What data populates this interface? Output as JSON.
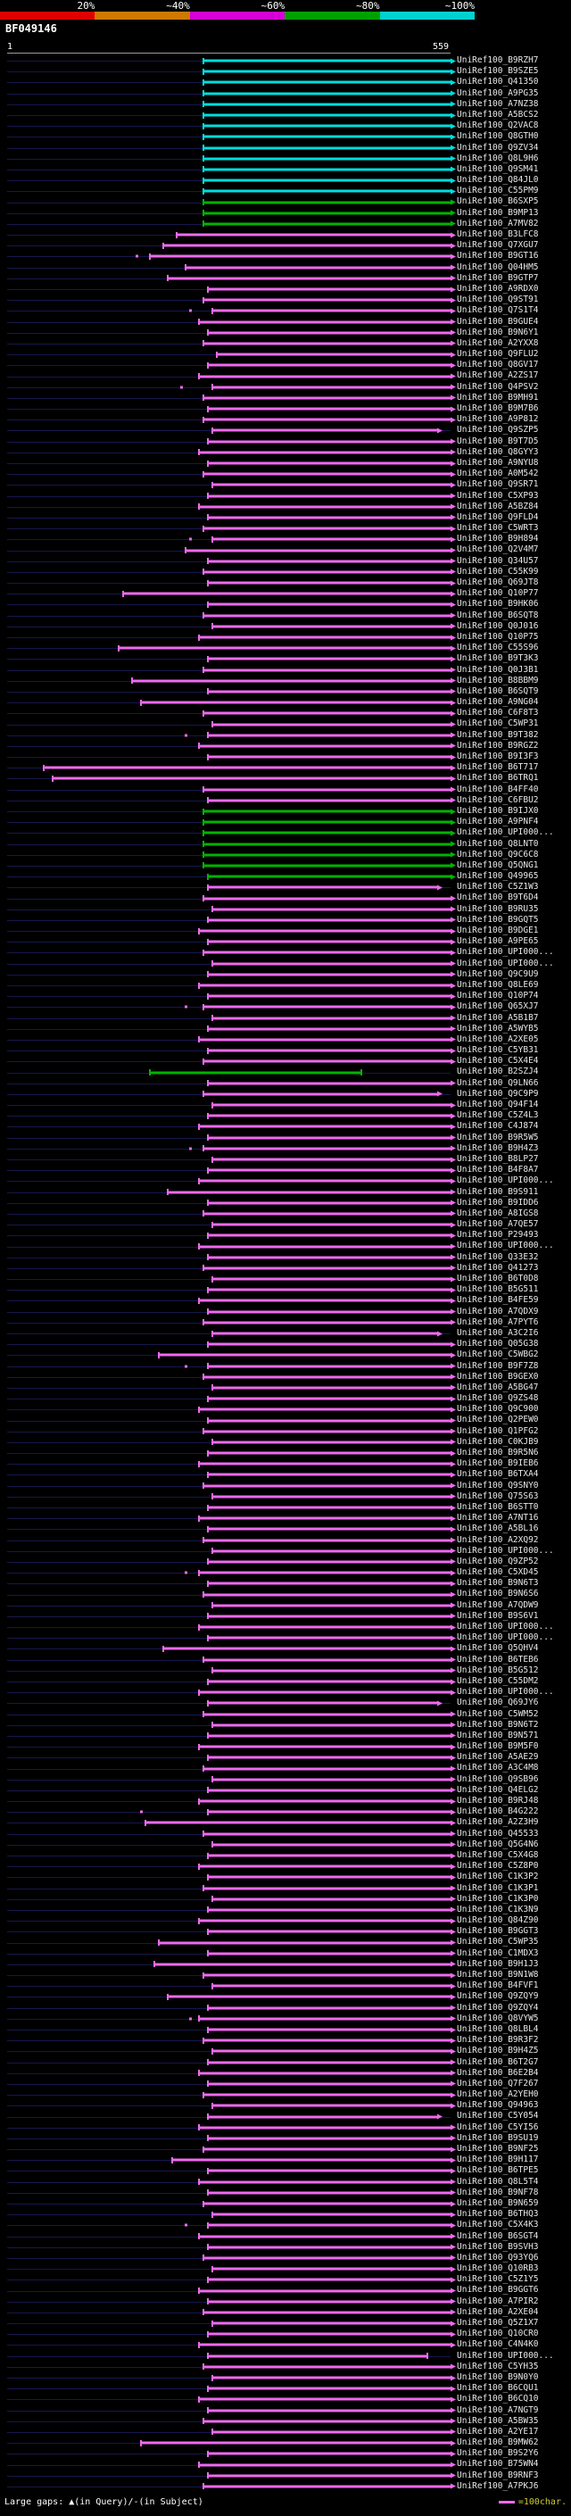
{
  "scale": {
    "labels": [
      "20%",
      "~40%",
      "~60%",
      "~80%",
      "~100%"
    ],
    "segment_colors": [
      "#dd0000",
      "#cc7a00",
      "#d400d4",
      "#00a000",
      "#00d0d0"
    ]
  },
  "query": {
    "name": "BF049146",
    "start_label": "1",
    "end_label": "559"
  },
  "footer": {
    "left": "Large gaps: ▲(in Query)/-(in Subject)",
    "right": "=100char.",
    "legend_dash_color": "#ee6aee"
  },
  "chart_data": {
    "type": "table",
    "title": "BF049146",
    "x_axis": {
      "start": 1,
      "end": 559
    },
    "label_prefix": "UniRef100_",
    "colors": {
      "c": "#00dede",
      "g": "#00b400",
      "m": "#ee6aee"
    },
    "underlay_color": "#17174d",
    "identity_buckets": {
      "c": "80-100%",
      "g": "60-80%",
      "m": "40-60%"
    },
    "hit_format": [
      "accession",
      "identity_bucket",
      "align_start_frac",
      "align_end_frac",
      "arrowhead",
      "extra_dot_frac"
    ],
    "hits": [
      [
        "B9RZH7",
        "c",
        0.44,
        1,
        1
      ],
      [
        "B9SZE5",
        "c",
        0.44,
        1,
        1
      ],
      [
        "Q41350",
        "c",
        0.44,
        1,
        1
      ],
      [
        "A9PG35",
        "c",
        0.44,
        1,
        1
      ],
      [
        "A7NZ38",
        "c",
        0.44,
        1,
        1
      ],
      [
        "A5BCS2",
        "c",
        0.44,
        1,
        1
      ],
      [
        "Q2VAC8",
        "c",
        0.44,
        1,
        1
      ],
      [
        "Q8GTH0",
        "c",
        0.44,
        1,
        1
      ],
      [
        "Q9ZV34",
        "c",
        0.44,
        1,
        1
      ],
      [
        "Q8L9H6",
        "c",
        0.44,
        1,
        1
      ],
      [
        "Q9SM41",
        "c",
        0.44,
        1,
        1
      ],
      [
        "Q84JL0",
        "c",
        0.44,
        1,
        1
      ],
      [
        "C55PM9",
        "c",
        0.44,
        1,
        1
      ],
      [
        "B6SXP5",
        "g",
        0.44,
        1,
        1
      ],
      [
        "B9MP13",
        "g",
        0.44,
        1,
        1
      ],
      [
        "A7MV82",
        "g",
        0.44,
        1,
        1
      ],
      [
        "B3LFC8",
        "m",
        0.38,
        1,
        1
      ],
      [
        "Q7XGU7",
        "m",
        0.35,
        1,
        1
      ],
      [
        "B9GT16",
        "m",
        0.32,
        1,
        1,
        0.29
      ],
      [
        "Q04HM5",
        "m",
        0.4,
        1,
        1
      ],
      [
        "B9GTP7",
        "m",
        0.36,
        1,
        1
      ],
      [
        "A9RDX0",
        "m",
        0.45,
        1,
        1
      ],
      [
        "Q9ST91",
        "m",
        0.44,
        1,
        1
      ],
      [
        "Q7S1T4",
        "m",
        0.46,
        1,
        1,
        0.41
      ],
      [
        "B9GUE4",
        "m",
        0.43,
        1,
        1
      ],
      [
        "B9N6Y1",
        "m",
        0.45,
        1,
        1
      ],
      [
        "A2YXX8",
        "m",
        0.44,
        1,
        1
      ],
      [
        "Q9FLU2",
        "m",
        0.47,
        1,
        1
      ],
      [
        "Q8GV17",
        "m",
        0.45,
        1,
        1
      ],
      [
        "A2ZS17",
        "m",
        0.43,
        1,
        1
      ],
      [
        "Q4PSV2",
        "m",
        0.46,
        1,
        1,
        0.39
      ],
      [
        "B9MH91",
        "m",
        0.44,
        1,
        1
      ],
      [
        "B9M7B6",
        "m",
        0.45,
        1,
        1
      ],
      [
        "A9P812",
        "m",
        0.44,
        1,
        1
      ],
      [
        "Q9SZP5",
        "m",
        0.46,
        0.97,
        1
      ],
      [
        "B9T7D5",
        "m",
        0.45,
        1,
        1
      ],
      [
        "Q8GYY3",
        "m",
        0.43,
        1,
        1
      ],
      [
        "A9NYU8",
        "m",
        0.45,
        1,
        1
      ],
      [
        "A0M542",
        "m",
        0.44,
        1,
        1
      ],
      [
        "Q9SR71",
        "m",
        0.46,
        1,
        1
      ],
      [
        "C5XP93",
        "m",
        0.45,
        1,
        1
      ],
      [
        "A5BZ84",
        "m",
        0.43,
        1,
        1
      ],
      [
        "Q9FLD4",
        "m",
        0.45,
        1,
        1
      ],
      [
        "C5WRT3",
        "m",
        0.44,
        1,
        1
      ],
      [
        "B9H894",
        "m",
        0.46,
        1,
        1,
        0.41
      ],
      [
        "Q2V4M7",
        "m",
        0.4,
        1,
        1
      ],
      [
        "Q34U57",
        "m",
        0.45,
        1,
        1
      ],
      [
        "C55K99",
        "m",
        0.44,
        1,
        1
      ],
      [
        "Q69JT8",
        "m",
        0.45,
        1,
        1
      ],
      [
        "Q10P77",
        "m",
        0.26,
        1,
        1
      ],
      [
        "B9HK06",
        "m",
        0.45,
        1,
        1
      ],
      [
        "B6SQT8",
        "m",
        0.44,
        1,
        1
      ],
      [
        "Q0J016",
        "m",
        0.46,
        1,
        1
      ],
      [
        "Q10P75",
        "m",
        0.43,
        1,
        1
      ],
      [
        "C55S96",
        "m",
        0.25,
        1,
        1
      ],
      [
        "B9T3K3",
        "m",
        0.45,
        1,
        1
      ],
      [
        "Q0J3B1",
        "m",
        0.44,
        1,
        1
      ],
      [
        "B8BBM9",
        "m",
        0.28,
        1,
        1
      ],
      [
        "B6SQT9",
        "m",
        0.45,
        1,
        1
      ],
      [
        "A9NG04",
        "m",
        0.3,
        1,
        1
      ],
      [
        "C6F8T3",
        "m",
        0.44,
        1,
        1
      ],
      [
        "C5WP31",
        "m",
        0.46,
        1,
        1
      ],
      [
        "B9T382",
        "m",
        0.45,
        1,
        1,
        0.4
      ],
      [
        "B9RGZ2",
        "m",
        0.43,
        1,
        1
      ],
      [
        "B9I3F3",
        "m",
        0.45,
        1,
        1
      ],
      [
        "B6T717",
        "m",
        0.08,
        1,
        1
      ],
      [
        "B6TRQ1",
        "m",
        0.1,
        1,
        1
      ],
      [
        "B4FF40",
        "m",
        0.44,
        1,
        1
      ],
      [
        "C6FBU2",
        "m",
        0.45,
        1,
        1
      ],
      [
        "B9IJX0",
        "g",
        0.44,
        1,
        1
      ],
      [
        "A9PNF4",
        "g",
        0.44,
        1,
        1
      ],
      [
        "UPI000...",
        "g",
        0.44,
        1,
        1
      ],
      [
        "Q8LNT0",
        "g",
        0.44,
        1,
        1
      ],
      [
        "Q9C6C8",
        "g",
        0.44,
        1,
        1
      ],
      [
        "Q5QNG1",
        "g",
        0.44,
        1,
        1
      ],
      [
        "Q49965",
        "g",
        0.45,
        1,
        1
      ],
      [
        "C5Z1W3",
        "m",
        0.45,
        0.97,
        1
      ],
      [
        "B9T6D4",
        "m",
        0.44,
        1,
        1
      ],
      [
        "B9RU35",
        "m",
        0.46,
        1,
        1
      ],
      [
        "B9GQT5",
        "m",
        0.45,
        1,
        1
      ],
      [
        "B9DGE1",
        "m",
        0.43,
        1,
        1
      ],
      [
        "A9PE65",
        "m",
        0.45,
        1,
        1
      ],
      [
        "UPI000...",
        "m",
        0.44,
        1,
        1
      ],
      [
        "UPI000...",
        "m",
        0.46,
        1,
        1
      ],
      [
        "Q9C9U9",
        "m",
        0.45,
        1,
        1
      ],
      [
        "Q8LE69",
        "m",
        0.43,
        1,
        1
      ],
      [
        "Q10P74",
        "m",
        0.45,
        1,
        1
      ],
      [
        "Q65XJ7",
        "m",
        0.44,
        1,
        1,
        0.4
      ],
      [
        "A5B1B7",
        "m",
        0.46,
        1,
        1
      ],
      [
        "A5WYB5",
        "m",
        0.45,
        1,
        1
      ],
      [
        "A2XE05",
        "m",
        0.43,
        1,
        1
      ],
      [
        "C5YB31",
        "m",
        0.45,
        1,
        1
      ],
      [
        "C5X4E4",
        "m",
        0.44,
        1,
        1
      ],
      [
        "B2SZJ4",
        "g",
        0.32,
        0.8,
        0
      ],
      [
        "Q9LN66",
        "m",
        0.45,
        1,
        1
      ],
      [
        "Q9C9P9",
        "m",
        0.44,
        0.97,
        1
      ],
      [
        "Q94F14",
        "m",
        0.46,
        1,
        1
      ],
      [
        "C5Z4L3",
        "m",
        0.45,
        1,
        1
      ],
      [
        "C4J874",
        "m",
        0.43,
        1,
        1
      ],
      [
        "B9R5W5",
        "m",
        0.45,
        1,
        1
      ],
      [
        "B9H4Z3",
        "m",
        0.44,
        1,
        1,
        0.41
      ],
      [
        "B8LP27",
        "m",
        0.46,
        1,
        1
      ],
      [
        "B4F8A7",
        "m",
        0.45,
        1,
        1
      ],
      [
        "UPI000...",
        "m",
        0.43,
        1,
        1
      ],
      [
        "B9S911",
        "m",
        0.36,
        1,
        1
      ],
      [
        "B9IDD6",
        "m",
        0.45,
        1,
        1
      ],
      [
        "A8IGS8",
        "m",
        0.44,
        1,
        1
      ],
      [
        "A7QE57",
        "m",
        0.46,
        1,
        1
      ],
      [
        "P29493",
        "m",
        0.45,
        1,
        1
      ],
      [
        "UPI000...",
        "m",
        0.43,
        1,
        1
      ],
      [
        "Q33E32",
        "m",
        0.45,
        1,
        1
      ],
      [
        "Q41273",
        "m",
        0.44,
        1,
        1
      ],
      [
        "B6T0D8",
        "m",
        0.46,
        1,
        1
      ],
      [
        "B5G511",
        "m",
        0.45,
        1,
        1
      ],
      [
        "B4FE59",
        "m",
        0.43,
        1,
        1
      ],
      [
        "A7QDX9",
        "m",
        0.45,
        1,
        1
      ],
      [
        "A7PYT6",
        "m",
        0.44,
        1,
        1
      ],
      [
        "A3C2I6",
        "m",
        0.46,
        0.97,
        1
      ],
      [
        "Q05G38",
        "m",
        0.45,
        1,
        1
      ],
      [
        "C5WBG2",
        "m",
        0.34,
        1,
        1
      ],
      [
        "B9F7Z8",
        "m",
        0.45,
        1,
        1,
        0.4
      ],
      [
        "B9GEX0",
        "m",
        0.44,
        1,
        1
      ],
      [
        "A5BG47",
        "m",
        0.46,
        1,
        1
      ],
      [
        "Q9ZS48",
        "m",
        0.45,
        1,
        1
      ],
      [
        "Q9C900",
        "m",
        0.43,
        1,
        1
      ],
      [
        "Q2PEW0",
        "m",
        0.45,
        1,
        1
      ],
      [
        "Q1PFG2",
        "m",
        0.44,
        1,
        1
      ],
      [
        "C0KJB9",
        "m",
        0.46,
        1,
        1
      ],
      [
        "B9R5N6",
        "m",
        0.45,
        1,
        1
      ],
      [
        "B9IEB6",
        "m",
        0.43,
        1,
        1
      ],
      [
        "B6TXA4",
        "m",
        0.45,
        1,
        1
      ],
      [
        "Q9SNY0",
        "m",
        0.44,
        1,
        1
      ],
      [
        "Q75S63",
        "m",
        0.46,
        1,
        1
      ],
      [
        "B6STT0",
        "m",
        0.45,
        1,
        1
      ],
      [
        "A7NT16",
        "m",
        0.43,
        1,
        1
      ],
      [
        "A5BL16",
        "m",
        0.45,
        1,
        1
      ],
      [
        "A2XQ92",
        "m",
        0.44,
        1,
        1
      ],
      [
        "UPI000...",
        "m",
        0.46,
        1,
        1
      ],
      [
        "Q9ZP52",
        "m",
        0.45,
        1,
        1
      ],
      [
        "C5XD45",
        "m",
        0.43,
        1,
        1,
        0.4
      ],
      [
        "B9N6T3",
        "m",
        0.45,
        1,
        1
      ],
      [
        "B9N6S6",
        "m",
        0.44,
        1,
        1
      ],
      [
        "A7QDW9",
        "m",
        0.46,
        1,
        1
      ],
      [
        "B9S6V1",
        "m",
        0.45,
        1,
        1
      ],
      [
        "UPI000...",
        "m",
        0.43,
        1,
        1
      ],
      [
        "UPI000...",
        "m",
        0.45,
        1,
        1
      ],
      [
        "Q5QHV4",
        "m",
        0.35,
        1,
        1
      ],
      [
        "B6TEB6",
        "m",
        0.44,
        1,
        1
      ],
      [
        "B5G512",
        "m",
        0.46,
        1,
        1
      ],
      [
        "C55DM2",
        "m",
        0.45,
        1,
        1
      ],
      [
        "UPI000...",
        "m",
        0.43,
        1,
        1
      ],
      [
        "Q69JY6",
        "m",
        0.45,
        0.97,
        1
      ],
      [
        "C5WM52",
        "m",
        0.44,
        1,
        1
      ],
      [
        "B9N6T2",
        "m",
        0.46,
        1,
        1
      ],
      [
        "B9N571",
        "m",
        0.45,
        1,
        1
      ],
      [
        "B9M5F0",
        "m",
        0.43,
        1,
        1
      ],
      [
        "A5AE29",
        "m",
        0.45,
        1,
        1
      ],
      [
        "A3C4M8",
        "m",
        0.44,
        1,
        1
      ],
      [
        "Q9SB96",
        "m",
        0.46,
        1,
        1
      ],
      [
        "Q4ELG2",
        "m",
        0.45,
        1,
        1
      ],
      [
        "B9RJ48",
        "m",
        0.43,
        1,
        1
      ],
      [
        "B4G222",
        "m",
        0.45,
        1,
        1,
        0.3
      ],
      [
        "A2Z3H9",
        "m",
        0.31,
        1,
        1
      ],
      [
        "Q45533",
        "m",
        0.44,
        1,
        1
      ],
      [
        "Q5G4N6",
        "m",
        0.46,
        1,
        1
      ],
      [
        "C5X4G8",
        "m",
        0.45,
        1,
        1
      ],
      [
        "C5Z8P0",
        "m",
        0.43,
        1,
        1
      ],
      [
        "C1K3P2",
        "m",
        0.45,
        1,
        1
      ],
      [
        "C1K3P1",
        "m",
        0.44,
        1,
        1
      ],
      [
        "C1K3P0",
        "m",
        0.46,
        1,
        1
      ],
      [
        "C1K3N9",
        "m",
        0.45,
        1,
        1
      ],
      [
        "Q84Z90",
        "m",
        0.43,
        1,
        1
      ],
      [
        "B9GGT3",
        "m",
        0.45,
        1,
        1
      ],
      [
        "C5WP35",
        "m",
        0.34,
        1,
        1
      ],
      [
        "C1MDX3",
        "m",
        0.45,
        1,
        1
      ],
      [
        "B9H1J3",
        "m",
        0.33,
        1,
        1
      ],
      [
        "B9N1W8",
        "m",
        0.44,
        1,
        1
      ],
      [
        "B4FVF1",
        "m",
        0.46,
        1,
        1
      ],
      [
        "Q9ZQY9",
        "m",
        0.36,
        1,
        1
      ],
      [
        "Q9ZQY4",
        "m",
        0.45,
        1,
        1
      ],
      [
        "Q8VYW5",
        "m",
        0.43,
        1,
        1,
        0.41
      ],
      [
        "Q8LBL4",
        "m",
        0.45,
        1,
        1
      ],
      [
        "B9R3F2",
        "m",
        0.44,
        1,
        1
      ],
      [
        "B9H4Z5",
        "m",
        0.46,
        1,
        1
      ],
      [
        "B6T2G7",
        "m",
        0.45,
        1,
        1
      ],
      [
        "B6E2B4",
        "m",
        0.43,
        1,
        1
      ],
      [
        "Q7F267",
        "m",
        0.45,
        1,
        1
      ],
      [
        "A2YEH0",
        "m",
        0.44,
        1,
        1
      ],
      [
        "Q94963",
        "m",
        0.46,
        1,
        1
      ],
      [
        "C5Y054",
        "m",
        0.45,
        0.97,
        1
      ],
      [
        "C5YI56",
        "m",
        0.43,
        1,
        1
      ],
      [
        "B9SU19",
        "m",
        0.45,
        1,
        1
      ],
      [
        "B9NF25",
        "m",
        0.44,
        1,
        1
      ],
      [
        "B9H117",
        "m",
        0.37,
        1,
        1
      ],
      [
        "B6TPE5",
        "m",
        0.45,
        1,
        1
      ],
      [
        "Q8L5T4",
        "m",
        0.43,
        1,
        1
      ],
      [
        "B9NF78",
        "m",
        0.45,
        1,
        1
      ],
      [
        "B9N659",
        "m",
        0.44,
        1,
        1
      ],
      [
        "B6THQ3",
        "m",
        0.46,
        1,
        1
      ],
      [
        "C5X4K3",
        "m",
        0.45,
        1,
        1,
        0.4
      ],
      [
        "B6SGT4",
        "m",
        0.43,
        1,
        1
      ],
      [
        "B9SVH3",
        "m",
        0.45,
        1,
        1
      ],
      [
        "Q93YQ6",
        "m",
        0.44,
        1,
        1
      ],
      [
        "Q10RB3",
        "m",
        0.46,
        1,
        1
      ],
      [
        "C5Z1Y5",
        "m",
        0.45,
        1,
        1
      ],
      [
        "B9GGT6",
        "m",
        0.43,
        1,
        1
      ],
      [
        "A7PIR2",
        "m",
        0.45,
        1,
        1
      ],
      [
        "A2XE04",
        "m",
        0.44,
        1,
        1
      ],
      [
        "Q5Z1X7",
        "m",
        0.46,
        1,
        1
      ],
      [
        "Q10CR0",
        "m",
        0.45,
        1,
        1
      ],
      [
        "C4N4K0",
        "m",
        0.43,
        1,
        1
      ],
      [
        "UPI000...",
        "m",
        0.45,
        0.95,
        0
      ],
      [
        "C5YH35",
        "m",
        0.44,
        1,
        1
      ],
      [
        "B9N0Y0",
        "m",
        0.46,
        1,
        1
      ],
      [
        "B6CQU1",
        "m",
        0.45,
        1,
        1
      ],
      [
        "B6CQ10",
        "m",
        0.43,
        1,
        1
      ],
      [
        "A7NGT9",
        "m",
        0.45,
        1,
        1
      ],
      [
        "A5BW35",
        "m",
        0.44,
        1,
        1
      ],
      [
        "A2YE17",
        "m",
        0.46,
        1,
        1
      ],
      [
        "B9MW62",
        "m",
        0.3,
        1,
        1
      ],
      [
        "B9S2Y6",
        "m",
        0.45,
        1,
        1
      ],
      [
        "B75WN4",
        "m",
        0.43,
        1,
        1
      ],
      [
        "B9RNF3",
        "m",
        0.45,
        1,
        1
      ],
      [
        "A7PKJ6",
        "m",
        0.44,
        1,
        1
      ]
    ]
  }
}
